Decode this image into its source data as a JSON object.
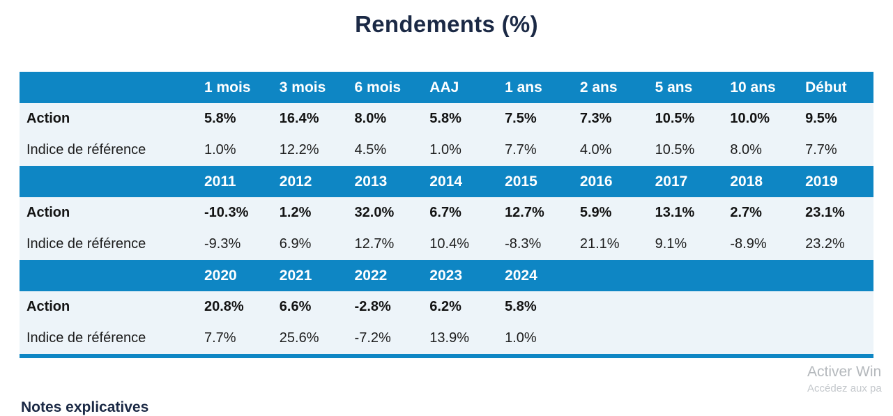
{
  "title": "Rendements (%)",
  "colors": {
    "header_blue": "#0e86c4",
    "row_background": "#edf4f9",
    "title_navy": "#1b2945"
  },
  "table": {
    "row_labels": {
      "action": "Action",
      "benchmark": "Indice de référence"
    },
    "sections": [
      {
        "columns": [
          "1 mois",
          "3 mois",
          "6 mois",
          "AAJ",
          "1 ans",
          "2 ans",
          "5 ans",
          "10 ans",
          "Début"
        ],
        "action": [
          "5.8%",
          "16.4%",
          "8.0%",
          "5.8%",
          "7.5%",
          "7.3%",
          "10.5%",
          "10.0%",
          "9.5%"
        ],
        "benchmark": [
          "1.0%",
          "12.2%",
          "4.5%",
          "1.0%",
          "7.7%",
          "4.0%",
          "10.5%",
          "8.0%",
          "7.7%"
        ]
      },
      {
        "columns": [
          "2011",
          "2012",
          "2013",
          "2014",
          "2015",
          "2016",
          "2017",
          "2018",
          "2019"
        ],
        "action": [
          "-10.3%",
          "1.2%",
          "32.0%",
          "6.7%",
          "12.7%",
          "5.9%",
          "13.1%",
          "2.7%",
          "23.1%"
        ],
        "benchmark": [
          "-9.3%",
          "6.9%",
          "12.7%",
          "10.4%",
          "-8.3%",
          "21.1%",
          "9.1%",
          "-8.9%",
          "23.2%"
        ]
      },
      {
        "columns": [
          "2020",
          "2021",
          "2022",
          "2023",
          "2024",
          "",
          "",
          "",
          ""
        ],
        "action": [
          "20.8%",
          "6.6%",
          "-2.8%",
          "6.2%",
          "5.8%",
          "",
          "",
          "",
          ""
        ],
        "benchmark": [
          "7.7%",
          "25.6%",
          "-7.2%",
          "13.9%",
          "1.0%",
          "",
          "",
          "",
          ""
        ]
      }
    ]
  },
  "footer": {
    "clipped_heading": "Notes explicatives"
  },
  "watermark": {
    "line1": "Activer Win",
    "line2": "Accédez aux pa"
  }
}
